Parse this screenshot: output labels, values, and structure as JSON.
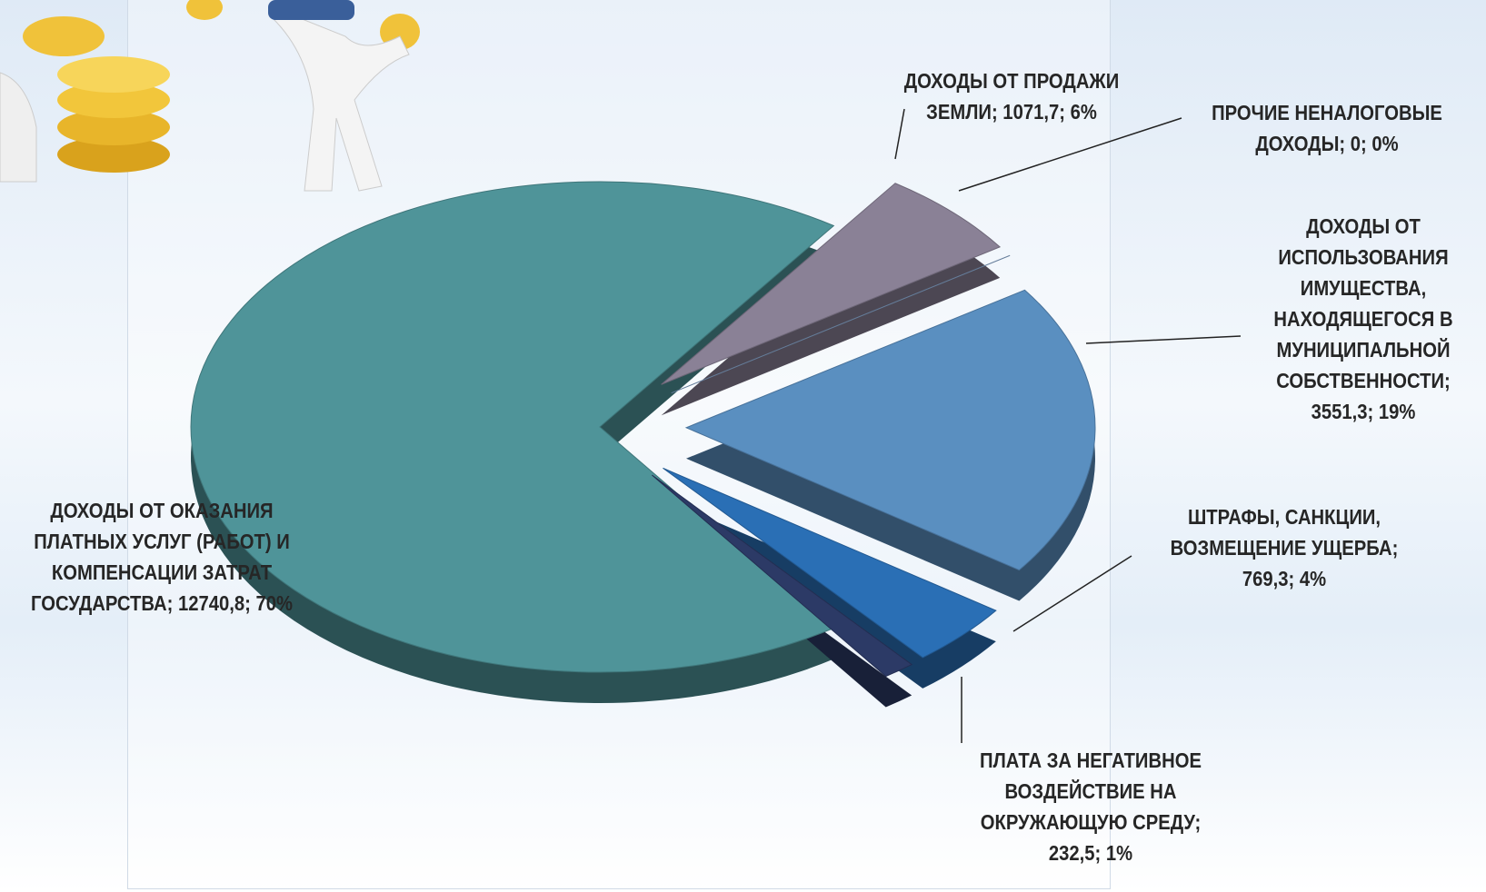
{
  "chart_data": {
    "type": "pie",
    "labels": [
      "ДОХОДЫ ОТ ОКАЗАНИЯ ПЛАТНЫХ УСЛУГ (РАБОТ) И КОМПЕНСАЦИИ ЗАТРАТ ГОСУДАРСТВА; 12740,8; 70%",
      "ДОХОДЫ ОТ ПРОДАЖИ ЗЕМЛИ; 1071,7; 6%",
      "ПРОЧИЕ НЕНАЛОГОВЫЕ ДОХОДЫ; 0; 0%",
      "ДОХОДЫ ОТ ИСПОЛЬЗОВАНИЯ ИМУЩЕСТВА, НАХОДЯЩЕГОСЯ В МУНИЦИПАЛЬНОЙ СОБСТВЕННОСТИ; 3551,3; 19%",
      "ШТРАФЫ, САНКЦИИ, ВОЗМЕЩЕНИЕ УЩЕРБА; 769,3; 4%",
      "ПЛАТА ЗА НЕГАТИВНОЕ ВОЗДЕЙСТВИЕ НА ОКРУЖАЮЩУЮ СРЕДУ; 232,5; 1%"
    ],
    "values": [
      12740.8,
      1071.7,
      0,
      3551.3,
      769.3,
      232.5
    ],
    "percents": [
      70,
      6,
      0,
      19,
      4,
      1
    ],
    "colors": [
      "#4f9499",
      "#8a8196",
      "#7e9cc0",
      "#5a8fc0",
      "#2a6fb5",
      "#2c3a66"
    ]
  }
}
